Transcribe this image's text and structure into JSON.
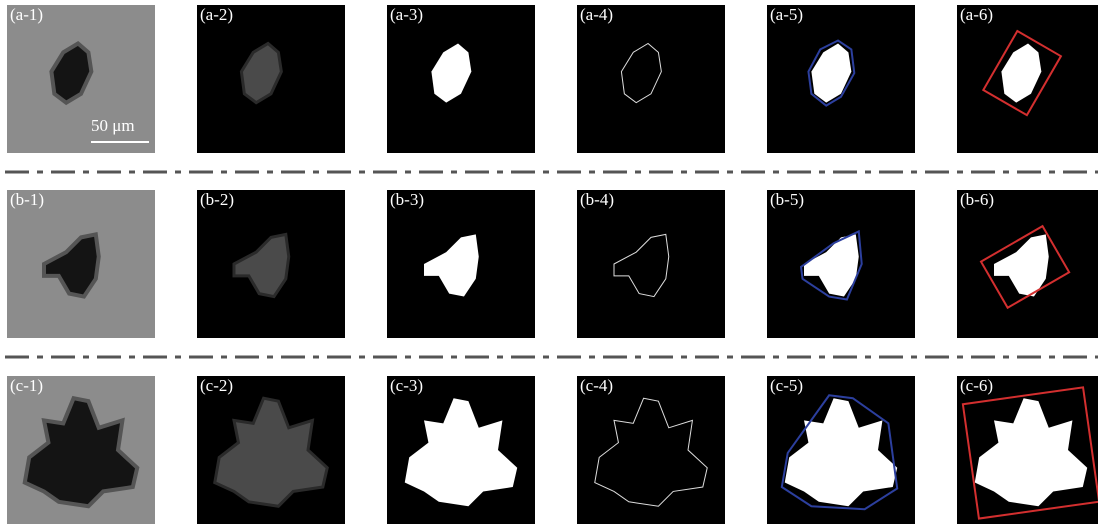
{
  "rows": [
    {
      "panels": [
        "(a-1)",
        "(a-2)",
        "(a-3)",
        "(a-4)",
        "(a-5)",
        "(a-6)"
      ]
    },
    {
      "panels": [
        "(b-1)",
        "(b-2)",
        "(b-3)",
        "(b-4)",
        "(b-5)",
        "(b-6)"
      ]
    },
    {
      "panels": [
        "(c-1)",
        "(c-2)",
        "(c-3)",
        "(c-4)",
        "(c-5)",
        "(c-6)"
      ]
    }
  ],
  "scale_bar": "50 μm"
}
